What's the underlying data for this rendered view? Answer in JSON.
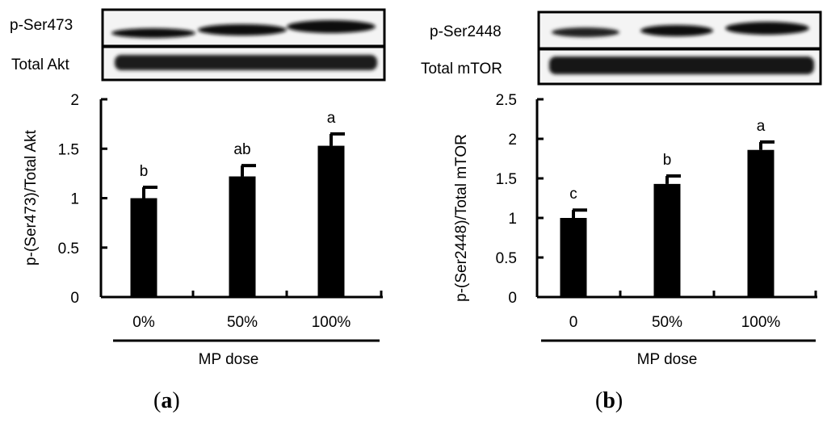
{
  "panels": [
    {
      "caption_letter": "a",
      "blots": [
        {
          "label": "p-Ser473"
        },
        {
          "label": "Total Akt"
        }
      ]
    },
    {
      "caption_letter": "b",
      "blots": [
        {
          "label": "p-Ser2448"
        },
        {
          "label": "Total mTOR"
        }
      ]
    }
  ],
  "chart_data": [
    {
      "type": "bar",
      "title": "",
      "xlabel": "MP dose",
      "ylabel": "p-(Ser473)/Total Akt",
      "categories": [
        "0%",
        "50%",
        "100%"
      ],
      "values": [
        1.0,
        1.22,
        1.53
      ],
      "errors": [
        0.11,
        0.11,
        0.12
      ],
      "significance": [
        "b",
        "ab",
        "a"
      ],
      "ylim": [
        0,
        2
      ],
      "yticks": [
        0,
        0.5,
        1,
        1.5,
        2
      ],
      "ytick_labels": [
        "0",
        "0.5",
        "1",
        "1.5",
        "2"
      ],
      "bar_color": "#000000",
      "grid": false
    },
    {
      "type": "bar",
      "title": "",
      "xlabel": "MP dose",
      "ylabel": "p-(Ser2448)/Total mTOR",
      "categories": [
        "0",
        "50%",
        "100%"
      ],
      "values": [
        1.0,
        1.43,
        1.86
      ],
      "errors": [
        0.1,
        0.1,
        0.1
      ],
      "significance": [
        "c",
        "b",
        "a"
      ],
      "ylim": [
        0,
        2.5
      ],
      "yticks": [
        0,
        0.5,
        1,
        1.5,
        2,
        2.5
      ],
      "ytick_labels": [
        "0",
        "0.5",
        "1",
        "1.5",
        "2",
        "2.5"
      ],
      "bar_color": "#000000",
      "grid": false
    }
  ]
}
